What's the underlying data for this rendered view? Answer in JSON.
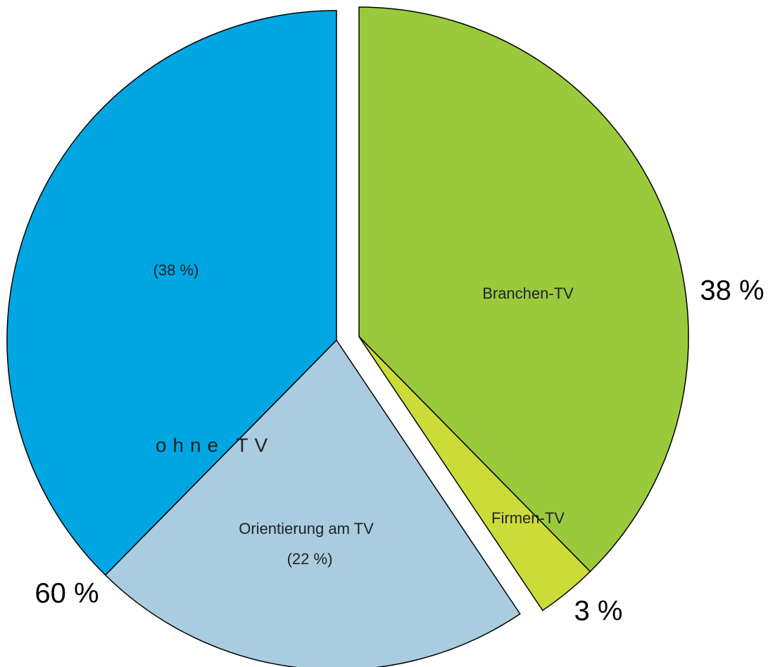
{
  "chart_data": {
    "type": "pie",
    "categories": [
      "Branchen-TV",
      "Firmen-TV",
      "Orientierung am TV",
      "ohne TV"
    ],
    "values": [
      38,
      3,
      22,
      38
    ],
    "value_labels": [
      "38 %",
      "3 %",
      "(22 %)",
      "(38 %)"
    ],
    "colors": [
      "#9aca3c",
      "#ccdb38",
      "#a9cce0",
      "#00a6e2"
    ],
    "explode": [
      true,
      true,
      false,
      false
    ],
    "group": {
      "value": 60,
      "label": "60 %"
    }
  }
}
